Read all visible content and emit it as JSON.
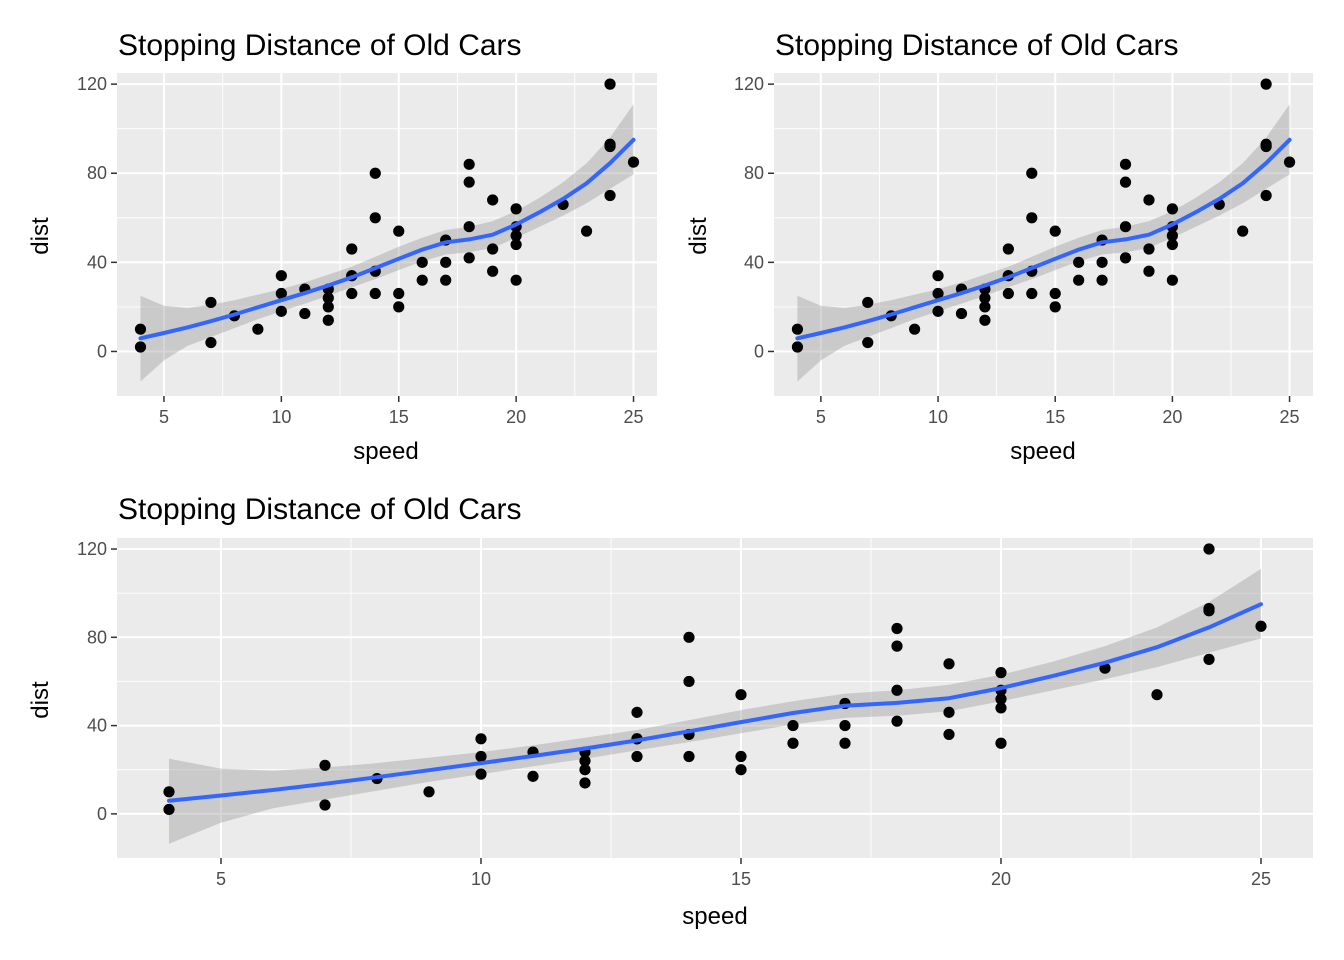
{
  "colors": {
    "panel": "#ebebeb",
    "grid": "#ffffff",
    "point": "#000000",
    "smooth_line": "#3366ff",
    "ribbon": "#999999",
    "tick_text": "#4d4d4d"
  },
  "chart_data": [
    {
      "type": "scatter",
      "title": "Stopping Distance of Old Cars",
      "xlabel": "speed",
      "ylabel": "dist",
      "xlim": [
        3,
        26
      ],
      "ylim": [
        -20,
        125
      ],
      "x_ticks": [
        5,
        10,
        15,
        20,
        25
      ],
      "y_ticks": [
        0,
        40,
        80,
        120
      ],
      "x_tick_labels": [
        "5",
        "10",
        "15",
        "20",
        "25"
      ],
      "y_tick_labels": [
        "0",
        "40",
        "80",
        "120"
      ],
      "grid": true,
      "legend": "none",
      "points": [
        [
          4,
          2
        ],
        [
          4,
          10
        ],
        [
          7,
          4
        ],
        [
          7,
          22
        ],
        [
          8,
          16
        ],
        [
          9,
          10
        ],
        [
          10,
          18
        ],
        [
          10,
          26
        ],
        [
          10,
          34
        ],
        [
          11,
          17
        ],
        [
          11,
          28
        ],
        [
          12,
          14
        ],
        [
          12,
          20
        ],
        [
          12,
          24
        ],
        [
          12,
          28
        ],
        [
          13,
          26
        ],
        [
          13,
          34
        ],
        [
          13,
          34
        ],
        [
          13,
          46
        ],
        [
          14,
          26
        ],
        [
          14,
          36
        ],
        [
          14,
          60
        ],
        [
          14,
          80
        ],
        [
          15,
          20
        ],
        [
          15,
          26
        ],
        [
          15,
          54
        ],
        [
          16,
          32
        ],
        [
          16,
          40
        ],
        [
          17,
          32
        ],
        [
          17,
          40
        ],
        [
          17,
          50
        ],
        [
          18,
          42
        ],
        [
          18,
          56
        ],
        [
          18,
          76
        ],
        [
          18,
          84
        ],
        [
          19,
          36
        ],
        [
          19,
          46
        ],
        [
          19,
          68
        ],
        [
          20,
          32
        ],
        [
          20,
          48
        ],
        [
          20,
          52
        ],
        [
          20,
          56
        ],
        [
          20,
          64
        ],
        [
          22,
          66
        ],
        [
          23,
          54
        ],
        [
          24,
          70
        ],
        [
          24,
          92
        ],
        [
          24,
          93
        ],
        [
          24,
          120
        ],
        [
          25,
          85
        ]
      ],
      "smooth": [
        [
          4,
          5.9
        ],
        [
          5,
          8.3
        ],
        [
          6,
          10.8
        ],
        [
          7,
          13.6
        ],
        [
          8,
          16.6
        ],
        [
          9,
          19.8
        ],
        [
          10,
          23.0
        ],
        [
          11,
          26.2
        ],
        [
          12,
          29.6
        ],
        [
          13,
          33.3
        ],
        [
          14,
          37.4
        ],
        [
          15,
          41.6
        ],
        [
          16,
          45.7
        ],
        [
          17,
          49.0
        ],
        [
          18,
          50.3
        ],
        [
          19,
          52.4
        ],
        [
          20,
          57.0
        ],
        [
          21,
          62.5
        ],
        [
          22,
          68.5
        ],
        [
          23,
          75.5
        ],
        [
          24,
          84.5
        ],
        [
          25,
          95.0
        ]
      ],
      "ribbon_lower": [
        [
          4,
          -13.5
        ],
        [
          5,
          -4.0
        ],
        [
          6,
          2.5
        ],
        [
          7,
          6.5
        ],
        [
          8,
          10.5
        ],
        [
          9,
          14.5
        ],
        [
          10,
          18.0
        ],
        [
          11,
          21.5
        ],
        [
          12,
          25.0
        ],
        [
          13,
          28.8
        ],
        [
          14,
          32.5
        ],
        [
          15,
          36.5
        ],
        [
          16,
          40.5
        ],
        [
          17,
          43.5
        ],
        [
          18,
          44.5
        ],
        [
          19,
          46.5
        ],
        [
          20,
          51.0
        ],
        [
          21,
          56.0
        ],
        [
          22,
          61.0
        ],
        [
          23,
          66.5
        ],
        [
          24,
          73.0
        ],
        [
          25,
          79.5
        ]
      ],
      "ribbon_upper": [
        [
          4,
          25.0
        ],
        [
          5,
          20.5
        ],
        [
          6,
          19.5
        ],
        [
          7,
          21.0
        ],
        [
          8,
          23.0
        ],
        [
          9,
          25.5
        ],
        [
          10,
          28.0
        ],
        [
          11,
          31.0
        ],
        [
          12,
          34.5
        ],
        [
          13,
          38.0
        ],
        [
          14,
          42.5
        ],
        [
          15,
          47.0
        ],
        [
          16,
          51.0
        ],
        [
          17,
          54.5
        ],
        [
          18,
          56.0
        ],
        [
          19,
          58.5
        ],
        [
          20,
          63.0
        ],
        [
          21,
          69.0
        ],
        [
          22,
          76.0
        ],
        [
          23,
          84.5
        ],
        [
          24,
          96.0
        ],
        [
          25,
          111.0
        ]
      ]
    },
    {
      "type": "scatter",
      "title": "Stopping Distance of Old Cars",
      "xlabel": "speed",
      "ylabel": "dist",
      "xlim": [
        3,
        26
      ],
      "ylim": [
        -20,
        125
      ],
      "x_ticks": [
        5,
        10,
        15,
        20,
        25
      ],
      "y_ticks": [
        0,
        40,
        80,
        120
      ],
      "x_tick_labels": [
        "5",
        "10",
        "15",
        "20",
        "25"
      ],
      "y_tick_labels": [
        "0",
        "40",
        "80",
        "120"
      ],
      "grid": true,
      "legend": "none",
      "points": [
        [
          4,
          2
        ],
        [
          4,
          10
        ],
        [
          7,
          4
        ],
        [
          7,
          22
        ],
        [
          8,
          16
        ],
        [
          9,
          10
        ],
        [
          10,
          18
        ],
        [
          10,
          26
        ],
        [
          10,
          34
        ],
        [
          11,
          17
        ],
        [
          11,
          28
        ],
        [
          12,
          14
        ],
        [
          12,
          20
        ],
        [
          12,
          24
        ],
        [
          12,
          28
        ],
        [
          13,
          26
        ],
        [
          13,
          34
        ],
        [
          13,
          34
        ],
        [
          13,
          46
        ],
        [
          14,
          26
        ],
        [
          14,
          36
        ],
        [
          14,
          60
        ],
        [
          14,
          80
        ],
        [
          15,
          20
        ],
        [
          15,
          26
        ],
        [
          15,
          54
        ],
        [
          16,
          32
        ],
        [
          16,
          40
        ],
        [
          17,
          32
        ],
        [
          17,
          40
        ],
        [
          17,
          50
        ],
        [
          18,
          42
        ],
        [
          18,
          56
        ],
        [
          18,
          76
        ],
        [
          18,
          84
        ],
        [
          19,
          36
        ],
        [
          19,
          46
        ],
        [
          19,
          68
        ],
        [
          20,
          32
        ],
        [
          20,
          48
        ],
        [
          20,
          52
        ],
        [
          20,
          56
        ],
        [
          20,
          64
        ],
        [
          22,
          66
        ],
        [
          23,
          54
        ],
        [
          24,
          70
        ],
        [
          24,
          92
        ],
        [
          24,
          93
        ],
        [
          24,
          120
        ],
        [
          25,
          85
        ]
      ],
      "smooth": [
        [
          4,
          5.9
        ],
        [
          5,
          8.3
        ],
        [
          6,
          10.8
        ],
        [
          7,
          13.6
        ],
        [
          8,
          16.6
        ],
        [
          9,
          19.8
        ],
        [
          10,
          23.0
        ],
        [
          11,
          26.2
        ],
        [
          12,
          29.6
        ],
        [
          13,
          33.3
        ],
        [
          14,
          37.4
        ],
        [
          15,
          41.6
        ],
        [
          16,
          45.7
        ],
        [
          17,
          49.0
        ],
        [
          18,
          50.3
        ],
        [
          19,
          52.4
        ],
        [
          20,
          57.0
        ],
        [
          21,
          62.5
        ],
        [
          22,
          68.5
        ],
        [
          23,
          75.5
        ],
        [
          24,
          84.5
        ],
        [
          25,
          95.0
        ]
      ],
      "ribbon_lower": [
        [
          4,
          -13.5
        ],
        [
          5,
          -4.0
        ],
        [
          6,
          2.5
        ],
        [
          7,
          6.5
        ],
        [
          8,
          10.5
        ],
        [
          9,
          14.5
        ],
        [
          10,
          18.0
        ],
        [
          11,
          21.5
        ],
        [
          12,
          25.0
        ],
        [
          13,
          28.8
        ],
        [
          14,
          32.5
        ],
        [
          15,
          36.5
        ],
        [
          16,
          40.5
        ],
        [
          17,
          43.5
        ],
        [
          18,
          44.5
        ],
        [
          19,
          46.5
        ],
        [
          20,
          51.0
        ],
        [
          21,
          56.0
        ],
        [
          22,
          61.0
        ],
        [
          23,
          66.5
        ],
        [
          24,
          73.0
        ],
        [
          25,
          79.5
        ]
      ],
      "ribbon_upper": [
        [
          4,
          25.0
        ],
        [
          5,
          20.5
        ],
        [
          6,
          19.5
        ],
        [
          7,
          21.0
        ],
        [
          8,
          23.0
        ],
        [
          9,
          25.5
        ],
        [
          10,
          28.0
        ],
        [
          11,
          31.0
        ],
        [
          12,
          34.5
        ],
        [
          13,
          38.0
        ],
        [
          14,
          42.5
        ],
        [
          15,
          47.0
        ],
        [
          16,
          51.0
        ],
        [
          17,
          54.5
        ],
        [
          18,
          56.0
        ],
        [
          19,
          58.5
        ],
        [
          20,
          63.0
        ],
        [
          21,
          69.0
        ],
        [
          22,
          76.0
        ],
        [
          23,
          84.5
        ],
        [
          24,
          96.0
        ],
        [
          25,
          111.0
        ]
      ]
    },
    {
      "type": "scatter",
      "title": "Stopping Distance of Old Cars",
      "xlabel": "speed",
      "ylabel": "dist",
      "xlim": [
        3,
        26
      ],
      "ylim": [
        -20,
        125
      ],
      "x_ticks": [
        5,
        10,
        15,
        20,
        25
      ],
      "y_ticks": [
        0,
        40,
        80,
        120
      ],
      "x_tick_labels": [
        "5",
        "10",
        "15",
        "20",
        "25"
      ],
      "y_tick_labels": [
        "0",
        "40",
        "80",
        "120"
      ],
      "grid": true,
      "legend": "none",
      "points": [
        [
          4,
          2
        ],
        [
          4,
          10
        ],
        [
          7,
          4
        ],
        [
          7,
          22
        ],
        [
          8,
          16
        ],
        [
          9,
          10
        ],
        [
          10,
          18
        ],
        [
          10,
          26
        ],
        [
          10,
          34
        ],
        [
          11,
          17
        ],
        [
          11,
          28
        ],
        [
          12,
          14
        ],
        [
          12,
          20
        ],
        [
          12,
          24
        ],
        [
          12,
          28
        ],
        [
          13,
          26
        ],
        [
          13,
          34
        ],
        [
          13,
          34
        ],
        [
          13,
          46
        ],
        [
          14,
          26
        ],
        [
          14,
          36
        ],
        [
          14,
          60
        ],
        [
          14,
          80
        ],
        [
          15,
          20
        ],
        [
          15,
          26
        ],
        [
          15,
          54
        ],
        [
          16,
          32
        ],
        [
          16,
          40
        ],
        [
          17,
          32
        ],
        [
          17,
          40
        ],
        [
          17,
          50
        ],
        [
          18,
          42
        ],
        [
          18,
          56
        ],
        [
          18,
          76
        ],
        [
          18,
          84
        ],
        [
          19,
          36
        ],
        [
          19,
          46
        ],
        [
          19,
          68
        ],
        [
          20,
          32
        ],
        [
          20,
          48
        ],
        [
          20,
          52
        ],
        [
          20,
          56
        ],
        [
          20,
          64
        ],
        [
          22,
          66
        ],
        [
          23,
          54
        ],
        [
          24,
          70
        ],
        [
          24,
          92
        ],
        [
          24,
          93
        ],
        [
          24,
          120
        ],
        [
          25,
          85
        ]
      ],
      "smooth": [
        [
          4,
          5.9
        ],
        [
          5,
          8.3
        ],
        [
          6,
          10.8
        ],
        [
          7,
          13.6
        ],
        [
          8,
          16.6
        ],
        [
          9,
          19.8
        ],
        [
          10,
          23.0
        ],
        [
          11,
          26.2
        ],
        [
          12,
          29.6
        ],
        [
          13,
          33.3
        ],
        [
          14,
          37.4
        ],
        [
          15,
          41.6
        ],
        [
          16,
          45.7
        ],
        [
          17,
          49.0
        ],
        [
          18,
          50.3
        ],
        [
          19,
          52.4
        ],
        [
          20,
          57.0
        ],
        [
          21,
          62.5
        ],
        [
          22,
          68.5
        ],
        [
          23,
          75.5
        ],
        [
          24,
          84.5
        ],
        [
          25,
          95.0
        ]
      ],
      "ribbon_lower": [
        [
          4,
          -13.5
        ],
        [
          5,
          -4.0
        ],
        [
          6,
          2.5
        ],
        [
          7,
          6.5
        ],
        [
          8,
          10.5
        ],
        [
          9,
          14.5
        ],
        [
          10,
          18.0
        ],
        [
          11,
          21.5
        ],
        [
          12,
          25.0
        ],
        [
          13,
          28.8
        ],
        [
          14,
          32.5
        ],
        [
          15,
          36.5
        ],
        [
          16,
          40.5
        ],
        [
          17,
          43.5
        ],
        [
          18,
          44.5
        ],
        [
          19,
          46.5
        ],
        [
          20,
          51.0
        ],
        [
          21,
          56.0
        ],
        [
          22,
          61.0
        ],
        [
          23,
          66.5
        ],
        [
          24,
          73.0
        ],
        [
          25,
          79.5
        ]
      ],
      "ribbon_upper": [
        [
          4,
          25.0
        ],
        [
          5,
          20.5
        ],
        [
          6,
          19.5
        ],
        [
          7,
          21.0
        ],
        [
          8,
          23.0
        ],
        [
          9,
          25.5
        ],
        [
          10,
          28.0
        ],
        [
          11,
          31.0
        ],
        [
          12,
          34.5
        ],
        [
          13,
          38.0
        ],
        [
          14,
          42.5
        ],
        [
          15,
          47.0
        ],
        [
          16,
          51.0
        ],
        [
          17,
          54.5
        ],
        [
          18,
          56.0
        ],
        [
          19,
          58.5
        ],
        [
          20,
          63.0
        ],
        [
          21,
          69.0
        ],
        [
          22,
          76.0
        ],
        [
          23,
          84.5
        ],
        [
          24,
          96.0
        ],
        [
          25,
          111.0
        ]
      ]
    }
  ]
}
